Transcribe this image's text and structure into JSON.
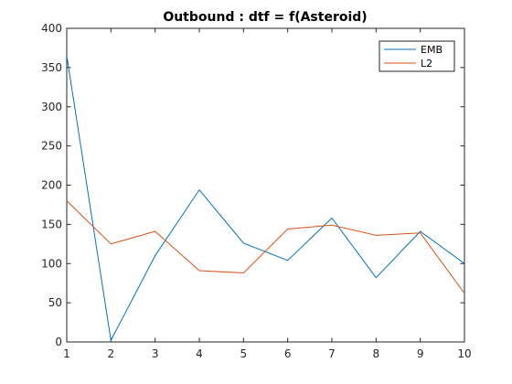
{
  "chart_data": {
    "type": "line",
    "title": "Outbound : dtf = f(Asteroid)",
    "xlabel": "",
    "ylabel": "",
    "x": [
      1,
      2,
      3,
      4,
      5,
      6,
      7,
      8,
      9,
      10
    ],
    "xlim": [
      1,
      10
    ],
    "ylim": [
      0,
      400
    ],
    "xticks": [
      "1",
      "2",
      "3",
      "4",
      "5",
      "6",
      "7",
      "8",
      "9",
      "10"
    ],
    "yticks": [
      "0",
      "50",
      "100",
      "150",
      "200",
      "250",
      "300",
      "350",
      "400"
    ],
    "grid": false,
    "legend_position": "top-right",
    "series": [
      {
        "name": "EMB",
        "color": "#0072bd",
        "values": [
          365,
          2,
          110,
          194,
          126,
          104,
          158,
          82,
          141,
          100
        ]
      },
      {
        "name": "L2",
        "color": "#d95319",
        "values": [
          180,
          125,
          141,
          91,
          88,
          144,
          149,
          136,
          139,
          62
        ]
      }
    ]
  }
}
